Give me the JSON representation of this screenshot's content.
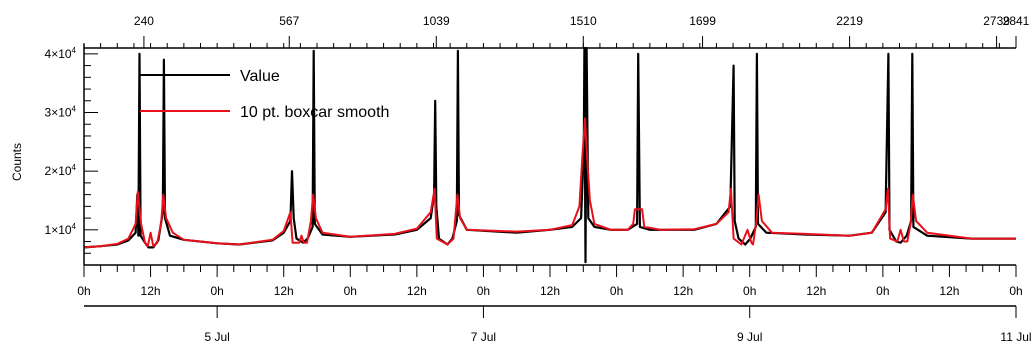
{
  "chart_data": {
    "type": "line",
    "ylabel": "Counts",
    "ylim": [
      4000,
      41000
    ],
    "y_ticks": [
      {
        "value": 10000,
        "mantissa": "1×10",
        "exp": "4"
      },
      {
        "value": 20000,
        "mantissa": "2×10",
        "exp": "4"
      },
      {
        "value": 30000,
        "mantissa": "3×10",
        "exp": "4"
      },
      {
        "value": 40000,
        "mantissa": "4×10",
        "exp": "4"
      }
    ],
    "xlim_hours": [
      0,
      168
    ],
    "top_axis_labels": [
      "240",
      "567",
      "1039",
      "1510",
      "1699",
      "2219",
      "2739",
      "2841"
    ],
    "top_axis_hours": [
      10.8,
      37,
      63.5,
      90,
      111.5,
      138,
      164.5,
      181
    ],
    "hour_labels": [
      "0h",
      "12h",
      "0h",
      "12h",
      "0h",
      "12h",
      "0h",
      "12h",
      "0h",
      "12h",
      "0h",
      "12h",
      "0h",
      "12h",
      "0h"
    ],
    "date_labels": [
      {
        "hour": 24,
        "label": "5 Jul"
      },
      {
        "hour": 72,
        "label": "7 Jul"
      },
      {
        "hour": 120,
        "label": "9 Jul"
      },
      {
        "hour": 168,
        "label": "11 Jul"
      }
    ],
    "legend": {
      "position": "top-left"
    },
    "series": [
      {
        "name": "Value",
        "color": "#000000",
        "points": [
          [
            0,
            7000
          ],
          [
            3,
            7200
          ],
          [
            6,
            7500
          ],
          [
            8,
            8200
          ],
          [
            9.3,
            9500
          ],
          [
            9.6,
            16000
          ],
          [
            9.8,
            9000
          ],
          [
            10,
            40000
          ],
          [
            10.2,
            9000
          ],
          [
            11,
            7800
          ],
          [
            11.6,
            7000
          ],
          [
            12.5,
            7000
          ],
          [
            13.4,
            8200
          ],
          [
            14.2,
            13000
          ],
          [
            14.4,
            39000
          ],
          [
            14.6,
            12000
          ],
          [
            15.5,
            9000
          ],
          [
            18,
            8300
          ],
          [
            24,
            7700
          ],
          [
            28,
            7500
          ],
          [
            34,
            8200
          ],
          [
            36,
            9500
          ],
          [
            37.2,
            11500
          ],
          [
            37.5,
            20000
          ],
          [
            37.8,
            12000
          ],
          [
            38.3,
            8500
          ],
          [
            39.5,
            7800
          ],
          [
            40.3,
            8500
          ],
          [
            41.2,
            10500
          ],
          [
            41.4,
            40500
          ],
          [
            41.6,
            11000
          ],
          [
            43,
            9200
          ],
          [
            48,
            8800
          ],
          [
            56,
            9200
          ],
          [
            60,
            10000
          ],
          [
            62.5,
            12000
          ],
          [
            63.1,
            16000
          ],
          [
            63.3,
            32000
          ],
          [
            63.5,
            14000
          ],
          [
            64,
            8500
          ],
          [
            65.5,
            7500
          ],
          [
            66.4,
            8500
          ],
          [
            67.2,
            11500
          ],
          [
            67.4,
            40500
          ],
          [
            67.6,
            12500
          ],
          [
            69,
            10000
          ],
          [
            78,
            9500
          ],
          [
            84,
            10000
          ],
          [
            88,
            10500
          ],
          [
            89.6,
            12000
          ],
          [
            90.1,
            24000
          ],
          [
            90.2,
            41000
          ],
          [
            90.4,
            4500
          ],
          [
            90.6,
            41000
          ],
          [
            90.9,
            12000
          ],
          [
            92,
            10500
          ],
          [
            95,
            10000
          ],
          [
            98,
            10000
          ],
          [
            99.7,
            11000
          ],
          [
            99.9,
            40000
          ],
          [
            100.2,
            10500
          ],
          [
            102,
            10000
          ],
          [
            110,
            10000
          ],
          [
            114,
            11000
          ],
          [
            116.5,
            14000
          ],
          [
            117.1,
            38000
          ],
          [
            117.3,
            11500
          ],
          [
            118,
            8500
          ],
          [
            119.2,
            7500
          ],
          [
            120.1,
            8500
          ],
          [
            121.1,
            10500
          ],
          [
            121.3,
            40000
          ],
          [
            121.5,
            11000
          ],
          [
            123,
            9500
          ],
          [
            130,
            9200
          ],
          [
            138,
            9000
          ],
          [
            142,
            9500
          ],
          [
            144.5,
            13000
          ],
          [
            145,
            40000
          ],
          [
            145.2,
            10000
          ],
          [
            146.4,
            8000
          ],
          [
            147.2,
            7800
          ],
          [
            148.3,
            9000
          ],
          [
            149.1,
            11500
          ],
          [
            149.3,
            40000
          ],
          [
            149.5,
            10500
          ],
          [
            152,
            9000
          ],
          [
            160,
            8500
          ],
          [
            168,
            8500
          ]
        ]
      },
      {
        "name": "10 pt. boxcar smooth",
        "color": "#e8101a",
        "points": [
          [
            0,
            7000
          ],
          [
            3,
            7200
          ],
          [
            6,
            7600
          ],
          [
            8,
            8500
          ],
          [
            9.3,
            11000
          ],
          [
            9.7,
            16500
          ],
          [
            10.3,
            11000
          ],
          [
            11,
            7800
          ],
          [
            11.5,
            7200
          ],
          [
            12,
            9500
          ],
          [
            12.5,
            7200
          ],
          [
            13.2,
            7800
          ],
          [
            13.9,
            11000
          ],
          [
            14.3,
            16000
          ],
          [
            14.8,
            12000
          ],
          [
            16,
            9500
          ],
          [
            18,
            8300
          ],
          [
            24,
            7700
          ],
          [
            28,
            7500
          ],
          [
            34,
            8300
          ],
          [
            36,
            9800
          ],
          [
            37.2,
            13000
          ],
          [
            37.6,
            7800
          ],
          [
            38.8,
            7800
          ],
          [
            39.2,
            9000
          ],
          [
            39.6,
            7800
          ],
          [
            40.2,
            7800
          ],
          [
            40.9,
            11500
          ],
          [
            41.3,
            16000
          ],
          [
            41.8,
            12000
          ],
          [
            43,
            9500
          ],
          [
            48,
            8800
          ],
          [
            56,
            9300
          ],
          [
            60,
            10200
          ],
          [
            62.5,
            13000
          ],
          [
            63.2,
            17000
          ],
          [
            63.6,
            8500
          ],
          [
            65.5,
            7500
          ],
          [
            66.6,
            8500
          ],
          [
            67.3,
            16000
          ],
          [
            67.8,
            12000
          ],
          [
            69,
            10000
          ],
          [
            78,
            9700
          ],
          [
            84,
            10000
          ],
          [
            88,
            10800
          ],
          [
            89.3,
            14000
          ],
          [
            89.8,
            22000
          ],
          [
            90.3,
            29000
          ],
          [
            90.7,
            22000
          ],
          [
            91.2,
            15000
          ],
          [
            92,
            11000
          ],
          [
            95,
            10000
          ],
          [
            98,
            10000
          ],
          [
            99,
            11000
          ],
          [
            99.3,
            13500
          ],
          [
            100.6,
            13500
          ],
          [
            101,
            10500
          ],
          [
            104,
            10000
          ],
          [
            110,
            10100
          ],
          [
            114,
            11000
          ],
          [
            116.2,
            13000
          ],
          [
            116.6,
            17000
          ],
          [
            117.1,
            8500
          ],
          [
            118.5,
            7500
          ],
          [
            119.6,
            10000
          ],
          [
            120.3,
            7800
          ],
          [
            120.6,
            7500
          ],
          [
            121.2,
            11500
          ],
          [
            121.6,
            16000
          ],
          [
            122.2,
            11500
          ],
          [
            124,
            9500
          ],
          [
            130,
            9300
          ],
          [
            138,
            9000
          ],
          [
            142,
            9500
          ],
          [
            144.5,
            13500
          ],
          [
            144.9,
            17000
          ],
          [
            145.3,
            8500
          ],
          [
            146.6,
            8000
          ],
          [
            147.2,
            10000
          ],
          [
            147.8,
            8000
          ],
          [
            148.4,
            8000
          ],
          [
            149,
            11000
          ],
          [
            149.4,
            16000
          ],
          [
            150,
            11500
          ],
          [
            152,
            9500
          ],
          [
            160,
            8500
          ],
          [
            168,
            8500
          ]
        ]
      }
    ]
  }
}
